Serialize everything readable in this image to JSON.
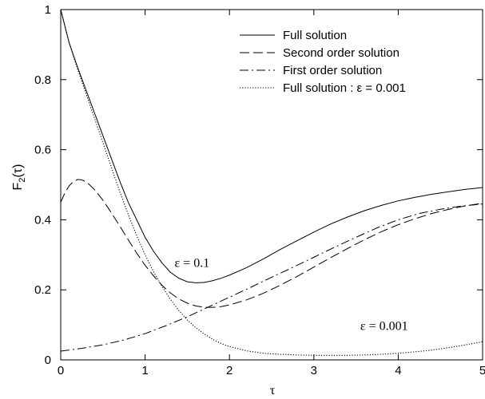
{
  "chart_data": {
    "type": "line",
    "xlabel": "τ",
    "ylabel_main": "F",
    "ylabel_sub": "2",
    "ylabel_arg": "(τ)",
    "xlim": [
      0,
      5
    ],
    "ylim": [
      0,
      1
    ],
    "x_ticks": [
      "0",
      "1",
      "2",
      "3",
      "4",
      "5"
    ],
    "y_ticks": [
      "0",
      "0.2",
      "0.4",
      "0.6",
      "0.8",
      "1"
    ],
    "grid": false,
    "legend_position": "top-right",
    "annotations": [
      {
        "text": "ε = 0.1",
        "x": 1.35,
        "y": 0.265
      },
      {
        "text": "ε = 0.001",
        "x": 3.55,
        "y": 0.085
      }
    ],
    "series": [
      {
        "name": "Full solution",
        "style": "solid",
        "x": [
          0,
          0.1,
          0.2,
          0.3,
          0.4,
          0.5,
          0.6,
          0.7,
          0.8,
          0.9,
          1.0,
          1.1,
          1.2,
          1.3,
          1.4,
          1.5,
          1.6,
          1.7,
          1.8,
          1.9,
          2.0,
          2.2,
          2.4,
          2.6,
          2.8,
          3.0,
          3.2,
          3.4,
          3.6,
          3.8,
          4.0,
          4.2,
          4.4,
          4.6,
          4.8,
          5.0
        ],
        "y": [
          1.0,
          0.905,
          0.835,
          0.77,
          0.705,
          0.64,
          0.575,
          0.51,
          0.45,
          0.4,
          0.35,
          0.31,
          0.277,
          0.25,
          0.233,
          0.223,
          0.22,
          0.221,
          0.226,
          0.233,
          0.242,
          0.263,
          0.288,
          0.315,
          0.34,
          0.365,
          0.388,
          0.408,
          0.426,
          0.441,
          0.454,
          0.464,
          0.473,
          0.48,
          0.487,
          0.492
        ]
      },
      {
        "name": "Second order solution",
        "style": "dashed",
        "x": [
          0,
          0.05,
          0.1,
          0.15,
          0.2,
          0.25,
          0.3,
          0.35,
          0.4,
          0.5,
          0.6,
          0.7,
          0.8,
          0.9,
          1.0,
          1.1,
          1.2,
          1.3,
          1.4,
          1.5,
          1.6,
          1.7,
          1.8,
          1.9,
          2.0,
          2.2,
          2.4,
          2.6,
          2.8,
          3.0,
          3.2,
          3.4,
          3.6,
          3.8,
          4.0,
          4.2,
          4.4,
          4.6,
          4.8,
          5.0
        ],
        "y": [
          0.45,
          0.477,
          0.497,
          0.509,
          0.515,
          0.514,
          0.508,
          0.498,
          0.486,
          0.456,
          0.42,
          0.382,
          0.343,
          0.305,
          0.27,
          0.24,
          0.213,
          0.191,
          0.174,
          0.162,
          0.154,
          0.15,
          0.15,
          0.152,
          0.157,
          0.171,
          0.19,
          0.213,
          0.238,
          0.265,
          0.292,
          0.318,
          0.343,
          0.366,
          0.386,
          0.403,
          0.418,
          0.43,
          0.44,
          0.447
        ]
      },
      {
        "name": "First order solution",
        "style": "dashdot",
        "x": [
          0,
          0.25,
          0.5,
          0.75,
          1.0,
          1.25,
          1.5,
          1.75,
          2.0,
          2.25,
          2.5,
          2.75,
          3.0,
          3.25,
          3.5,
          3.75,
          4.0,
          4.25,
          4.5,
          4.75,
          5.0
        ],
        "y": [
          0.025,
          0.033,
          0.043,
          0.057,
          0.075,
          0.098,
          0.123,
          0.151,
          0.179,
          0.207,
          0.236,
          0.264,
          0.293,
          0.322,
          0.35,
          0.377,
          0.4,
          0.418,
          0.43,
          0.439,
          0.445
        ]
      },
      {
        "name": "Full solution : ε = 0.001",
        "style": "dotted",
        "x": [
          0,
          0.1,
          0.2,
          0.3,
          0.4,
          0.5,
          0.6,
          0.7,
          0.8,
          0.9,
          1.0,
          1.1,
          1.2,
          1.3,
          1.4,
          1.5,
          1.6,
          1.7,
          1.8,
          1.9,
          2.0,
          2.2,
          2.4,
          2.6,
          2.8,
          3.0,
          3.2,
          3.4,
          3.6,
          3.8,
          4.0,
          4.2,
          4.4,
          4.6,
          4.8,
          5.0
        ],
        "y": [
          1.0,
          0.905,
          0.83,
          0.76,
          0.69,
          0.62,
          0.55,
          0.48,
          0.415,
          0.355,
          0.3,
          0.252,
          0.21,
          0.173,
          0.141,
          0.114,
          0.092,
          0.074,
          0.059,
          0.047,
          0.038,
          0.026,
          0.019,
          0.016,
          0.014,
          0.013,
          0.013,
          0.013,
          0.014,
          0.016,
          0.019,
          0.023,
          0.028,
          0.035,
          0.043,
          0.052
        ]
      }
    ]
  }
}
